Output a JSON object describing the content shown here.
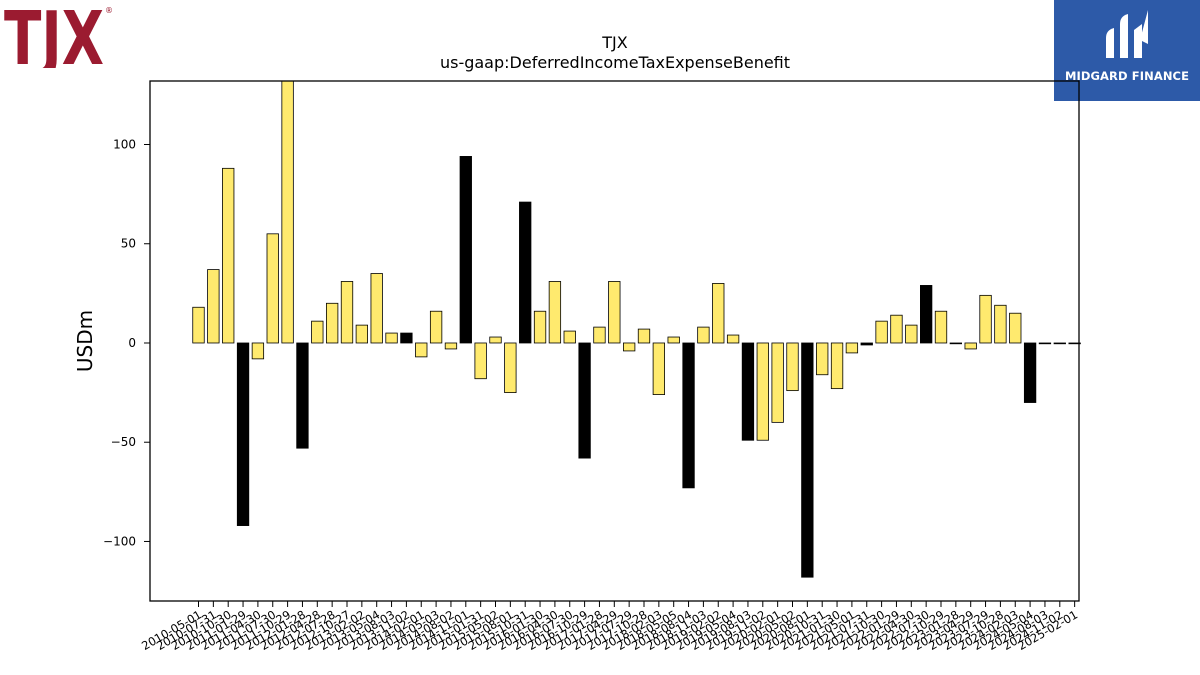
{
  "logos": {
    "left": {
      "text": "TJX",
      "mark": "®",
      "color": "#9b1b30"
    },
    "right": {
      "text": "MIDGARD FINANCE",
      "background": "#2d5aa8"
    }
  },
  "chart_data": {
    "type": "bar",
    "title": "TJX",
    "subtitle": "us-gaap:DeferredIncomeTaxExpenseBenefit",
    "xlabel": "",
    "ylabel": "USDm",
    "ylim": [
      -130,
      132
    ],
    "yticks": [
      -100,
      -50,
      0,
      50,
      100
    ],
    "grid": false,
    "colors": {
      "quarter": "#ffea6e",
      "annual": "#000000",
      "edge": "#000000"
    },
    "categories": [
      "2010-05-01",
      "2010-07-31",
      "2010-10-30",
      "2011-01-29",
      "2011-04-30",
      "2011-07-30",
      "2011-10-29",
      "2012-01-28",
      "2012-04-28",
      "2012-07-28",
      "2012-10-27",
      "2013-02-02",
      "2013-05-04",
      "2013-08-03",
      "2013-11-02",
      "2014-02-01",
      "2014-05-03",
      "2014-08-02",
      "2014-11-01",
      "2015-01-31",
      "2015-05-02",
      "2015-08-01",
      "2015-10-31",
      "2016-01-30",
      "2016-04-30",
      "2016-07-30",
      "2016-10-29",
      "2017-01-28",
      "2017-04-29",
      "2017-07-29",
      "2017-10-28",
      "2018-02-03",
      "2018-05-05",
      "2018-08-04",
      "2018-11-03",
      "2019-02-02",
      "2019-05-04",
      "2019-08-03",
      "2019-11-02",
      "2020-02-01",
      "2020-05-02",
      "2020-08-01",
      "2020-10-31",
      "2021-01-30",
      "2021-05-01",
      "2021-07-31",
      "2021-10-30",
      "2022-01-29",
      "2022-04-30",
      "2022-07-30",
      "2022-10-29",
      "2023-01-28",
      "2023-04-29",
      "2023-07-29",
      "2023-10-28",
      "2024-02-03",
      "2024-05-04",
      "2024-08-03",
      "2024-11-02",
      "2025-02-01"
    ],
    "values": [
      18,
      37,
      88,
      -92,
      -8,
      55,
      132,
      -53,
      11,
      20,
      31,
      9,
      35,
      5,
      5,
      -7,
      16,
      -3,
      94,
      -18,
      3,
      -25,
      71,
      16,
      31,
      6,
      -58,
      8,
      31,
      -4,
      7,
      -26,
      3,
      -73,
      8,
      30,
      4,
      -49,
      -49,
      -40,
      -24,
      -118,
      -16,
      -23,
      -5,
      -1,
      11,
      14,
      9,
      29,
      16,
      0,
      -3,
      24,
      19,
      15,
      -30,
      0,
      0,
      0
    ],
    "annual": [
      false,
      false,
      false,
      true,
      false,
      false,
      false,
      true,
      false,
      false,
      false,
      false,
      false,
      false,
      true,
      false,
      false,
      false,
      true,
      false,
      false,
      false,
      true,
      false,
      false,
      false,
      true,
      false,
      false,
      false,
      false,
      false,
      false,
      true,
      false,
      false,
      false,
      true,
      false,
      false,
      false,
      true,
      false,
      false,
      false,
      true,
      false,
      false,
      false,
      true,
      false,
      false,
      false,
      false,
      false,
      false,
      true,
      false,
      false,
      false
    ]
  }
}
